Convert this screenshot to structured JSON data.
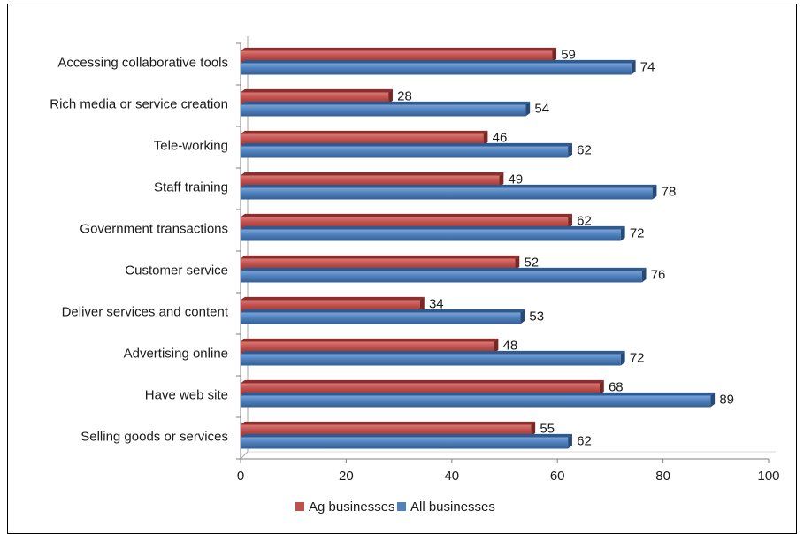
{
  "chart_data": {
    "type": "bar",
    "orientation": "horizontal",
    "categories": [
      "Accessing collaborative tools",
      "Rich media or service creation",
      "Tele-working",
      "Staff training",
      "Government transactions",
      "Customer service",
      "Deliver services and content",
      "Advertising online",
      "Have web site",
      "Selling goods or services"
    ],
    "series": [
      {
        "name": "Ag businesses",
        "color": "#c0504d",
        "values": [
          59,
          28,
          46,
          49,
          62,
          52,
          34,
          48,
          68,
          55
        ]
      },
      {
        "name": "All businesses",
        "color": "#4f81bd",
        "values": [
          74,
          54,
          62,
          78,
          72,
          76,
          53,
          72,
          89,
          62
        ]
      }
    ],
    "xlim": [
      0,
      100
    ],
    "xticks": [
      "0",
      "20",
      "40",
      "60",
      "80",
      "100"
    ],
    "grid": false,
    "legend_position": "bottom"
  }
}
